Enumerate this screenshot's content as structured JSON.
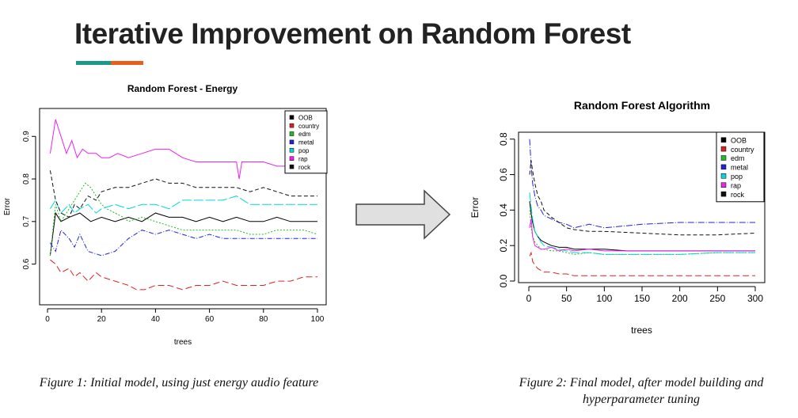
{
  "slide": {
    "title": "Iterative Improvement on Random Forest",
    "accent_colors": [
      "#1a9988",
      "#e8601c"
    ],
    "caption1": "Figure 1: Initial model, using just energy audio feature",
    "caption2_line1": "Figure 2: Final model, after model building and",
    "caption2_line2": "hyperparameter tuning",
    "arrow_icon": "right-arrow-icon"
  },
  "chart_data": [
    {
      "type": "line",
      "title": "Random Forest - Energy",
      "xlabel": "trees",
      "ylabel": "Error",
      "xlim": [
        0,
        100
      ],
      "ylim": [
        0.51,
        0.96
      ],
      "xticks": [
        0,
        20,
        40,
        60,
        80,
        100
      ],
      "yticks": [
        0.6,
        0.7,
        0.8,
        0.9
      ],
      "legend_position": "top-right",
      "series": [
        {
          "name": "OOB",
          "color": "#000000",
          "dash": "solid",
          "x": [
            1,
            3,
            5,
            8,
            12,
            16,
            20,
            25,
            30,
            35,
            40,
            45,
            50,
            55,
            60,
            65,
            70,
            75,
            80,
            85,
            90,
            95,
            100
          ],
          "y": [
            0.62,
            0.72,
            0.7,
            0.71,
            0.72,
            0.7,
            0.71,
            0.7,
            0.71,
            0.7,
            0.72,
            0.71,
            0.71,
            0.7,
            0.71,
            0.7,
            0.71,
            0.7,
            0.7,
            0.71,
            0.7,
            0.7,
            0.7
          ]
        },
        {
          "name": "country",
          "color": "#df2020",
          "dash": "8,4",
          "x": [
            1,
            3,
            5,
            8,
            10,
            12,
            15,
            18,
            20,
            25,
            30,
            33,
            36,
            40,
            45,
            50,
            55,
            60,
            65,
            70,
            75,
            80,
            85,
            90,
            95,
            100
          ],
          "y": [
            0.61,
            0.6,
            0.58,
            0.59,
            0.57,
            0.58,
            0.56,
            0.58,
            0.57,
            0.56,
            0.55,
            0.54,
            0.54,
            0.55,
            0.55,
            0.54,
            0.55,
            0.55,
            0.56,
            0.55,
            0.55,
            0.55,
            0.56,
            0.56,
            0.57,
            0.57
          ]
        },
        {
          "name": "edm",
          "color": "#22bb22",
          "dash": "2,2",
          "x": [
            1,
            3,
            5,
            8,
            10,
            12,
            14,
            16,
            18,
            20,
            22,
            25,
            28,
            30,
            35,
            40,
            45,
            50,
            55,
            60,
            65,
            70,
            75,
            80,
            85,
            90,
            95,
            100
          ],
          "y": [
            0.62,
            0.74,
            0.7,
            0.73,
            0.75,
            0.77,
            0.79,
            0.78,
            0.76,
            0.74,
            0.73,
            0.72,
            0.71,
            0.7,
            0.71,
            0.7,
            0.69,
            0.68,
            0.68,
            0.68,
            0.68,
            0.68,
            0.67,
            0.67,
            0.68,
            0.68,
            0.68,
            0.67
          ]
        },
        {
          "name": "metal",
          "color": "#2222dd",
          "dash": "6,2,1,2",
          "x": [
            1,
            3,
            5,
            8,
            10,
            12,
            15,
            20,
            25,
            30,
            35,
            40,
            45,
            50,
            55,
            60,
            65,
            70,
            75,
            80,
            85,
            90,
            95,
            100
          ],
          "y": [
            0.65,
            0.63,
            0.68,
            0.66,
            0.64,
            0.67,
            0.63,
            0.62,
            0.63,
            0.66,
            0.68,
            0.67,
            0.68,
            0.67,
            0.66,
            0.67,
            0.66,
            0.66,
            0.66,
            0.66,
            0.66,
            0.66,
            0.66,
            0.66
          ]
        },
        {
          "name": "pop",
          "color": "#00d8d8",
          "dash": "12,3",
          "x": [
            1,
            3,
            5,
            8,
            10,
            12,
            15,
            18,
            20,
            25,
            30,
            35,
            40,
            45,
            50,
            55,
            60,
            65,
            70,
            75,
            80,
            85,
            90,
            95,
            100
          ],
          "y": [
            0.73,
            0.75,
            0.72,
            0.74,
            0.72,
            0.73,
            0.74,
            0.72,
            0.73,
            0.74,
            0.73,
            0.74,
            0.74,
            0.73,
            0.75,
            0.75,
            0.75,
            0.75,
            0.76,
            0.74,
            0.74,
            0.74,
            0.74,
            0.74,
            0.74
          ]
        },
        {
          "name": "rap",
          "color": "#ee22ee",
          "dash": "solid",
          "x": [
            1,
            3,
            5,
            7,
            9,
            11,
            13,
            15,
            18,
            20,
            23,
            26,
            30,
            35,
            40,
            45,
            50,
            55,
            60,
            65,
            70,
            71,
            72,
            75,
            80,
            85,
            90,
            95,
            100
          ],
          "y": [
            0.86,
            0.94,
            0.9,
            0.86,
            0.89,
            0.85,
            0.87,
            0.86,
            0.86,
            0.85,
            0.85,
            0.86,
            0.85,
            0.86,
            0.87,
            0.87,
            0.85,
            0.84,
            0.84,
            0.84,
            0.84,
            0.8,
            0.84,
            0.84,
            0.84,
            0.83,
            0.83,
            0.82,
            0.82
          ]
        },
        {
          "name": "rock",
          "color": "#111111",
          "dash": "5,3",
          "x": [
            1,
            3,
            5,
            8,
            10,
            12,
            15,
            18,
            20,
            25,
            30,
            35,
            40,
            45,
            50,
            55,
            60,
            65,
            70,
            75,
            80,
            85,
            90,
            95,
            100
          ],
          "y": [
            0.82,
            0.75,
            0.72,
            0.71,
            0.74,
            0.73,
            0.76,
            0.75,
            0.77,
            0.78,
            0.78,
            0.79,
            0.8,
            0.79,
            0.79,
            0.78,
            0.78,
            0.78,
            0.78,
            0.77,
            0.78,
            0.77,
            0.76,
            0.76,
            0.76
          ]
        }
      ]
    },
    {
      "type": "line",
      "title": "Random Forest Algorithm",
      "xlabel": "trees",
      "ylabel": "Error",
      "xlim": [
        0,
        300
      ],
      "ylim": [
        0,
        0.83
      ],
      "xticks": [
        0,
        50,
        100,
        150,
        200,
        250,
        300
      ],
      "yticks": [
        0.0,
        0.2,
        0.4,
        0.6,
        0.8
      ],
      "legend_position": "top-right",
      "series": [
        {
          "name": "OOB",
          "color": "#000000",
          "dash": "solid",
          "x": [
            1,
            3,
            5,
            8,
            12,
            16,
            20,
            25,
            30,
            40,
            50,
            60,
            80,
            100,
            130,
            160,
            200,
            240,
            270,
            300
          ],
          "y": [
            0.45,
            0.38,
            0.33,
            0.28,
            0.25,
            0.23,
            0.22,
            0.21,
            0.2,
            0.19,
            0.19,
            0.18,
            0.18,
            0.18,
            0.17,
            0.17,
            0.17,
            0.17,
            0.17,
            0.17
          ]
        },
        {
          "name": "country",
          "color": "#df2020",
          "dash": "8,4",
          "x": [
            1,
            3,
            5,
            8,
            12,
            16,
            20,
            30,
            40,
            50,
            60,
            80,
            100,
            150,
            200,
            250,
            300
          ],
          "y": [
            0.14,
            0.16,
            0.11,
            0.09,
            0.07,
            0.06,
            0.05,
            0.05,
            0.04,
            0.04,
            0.03,
            0.03,
            0.03,
            0.03,
            0.03,
            0.03,
            0.03
          ]
        },
        {
          "name": "edm",
          "color": "#22bb22",
          "dash": "2,2",
          "x": [
            1,
            3,
            5,
            8,
            12,
            16,
            20,
            30,
            40,
            50,
            60,
            80,
            100,
            150,
            200,
            250,
            300
          ],
          "y": [
            0.4,
            0.3,
            0.25,
            0.22,
            0.2,
            0.18,
            0.18,
            0.17,
            0.17,
            0.16,
            0.15,
            0.16,
            0.15,
            0.15,
            0.15,
            0.16,
            0.16
          ]
        },
        {
          "name": "metal",
          "color": "#2222dd",
          "dash": "8,2,1,2",
          "x": [
            1,
            3,
            5,
            8,
            12,
            16,
            20,
            30,
            40,
            50,
            60,
            70,
            80,
            100,
            150,
            200,
            250,
            300
          ],
          "y": [
            0.8,
            0.65,
            0.55,
            0.48,
            0.42,
            0.4,
            0.37,
            0.35,
            0.33,
            0.32,
            0.3,
            0.31,
            0.32,
            0.3,
            0.32,
            0.33,
            0.33,
            0.33
          ]
        },
        {
          "name": "pop",
          "color": "#00d8d8",
          "dash": "12,3",
          "x": [
            1,
            3,
            5,
            8,
            12,
            16,
            20,
            30,
            40,
            50,
            60,
            80,
            100,
            150,
            200,
            250,
            300
          ],
          "y": [
            0.5,
            0.42,
            0.35,
            0.28,
            0.25,
            0.22,
            0.2,
            0.19,
            0.18,
            0.17,
            0.16,
            0.16,
            0.15,
            0.15,
            0.15,
            0.16,
            0.16
          ]
        },
        {
          "name": "rap",
          "color": "#ee22ee",
          "dash": "solid",
          "x": [
            1,
            3,
            5,
            8,
            12,
            16,
            20,
            30,
            40,
            50,
            60,
            80,
            100,
            150,
            200,
            250,
            300
          ],
          "y": [
            0.3,
            0.35,
            0.25,
            0.2,
            0.19,
            0.18,
            0.18,
            0.19,
            0.17,
            0.18,
            0.17,
            0.18,
            0.17,
            0.17,
            0.17,
            0.17,
            0.17
          ]
        },
        {
          "name": "rock",
          "color": "#111111",
          "dash": "5,3",
          "x": [
            1,
            3,
            5,
            8,
            12,
            16,
            20,
            30,
            40,
            50,
            60,
            80,
            100,
            150,
            200,
            250,
            300
          ],
          "y": [
            0.6,
            0.68,
            0.62,
            0.55,
            0.48,
            0.45,
            0.4,
            0.36,
            0.33,
            0.3,
            0.29,
            0.28,
            0.28,
            0.27,
            0.26,
            0.26,
            0.27
          ]
        }
      ]
    }
  ]
}
